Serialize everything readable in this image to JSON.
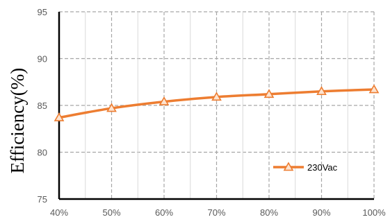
{
  "chart_data": {
    "type": "line",
    "title": "",
    "xlabel": "",
    "ylabel": "Efficiency(%)",
    "categories": [
      "40%",
      "50%",
      "60%",
      "70%",
      "80%",
      "90%",
      "100%"
    ],
    "series": [
      {
        "name": "230Vac",
        "values": [
          83.7,
          84.7,
          85.4,
          85.9,
          86.2,
          86.5,
          86.7
        ],
        "color": "#ED7D31",
        "marker": "triangle"
      }
    ],
    "ylim": [
      75,
      95
    ],
    "yticks": [
      75,
      80,
      85,
      90,
      95
    ],
    "grid": "dashed",
    "legend_position": "bottom-right"
  }
}
